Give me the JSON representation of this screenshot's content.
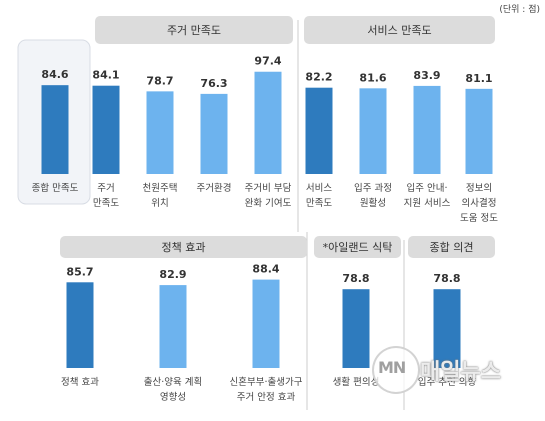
{
  "unit_note": "(단위 : 점)",
  "colors": {
    "dark_bar": "#2E7BBE",
    "light_bar": "#6DB3EE",
    "header_bg": "#DCDCDC",
    "panel_bg": "#F2F4F8"
  },
  "watermark": {
    "logo": "MN",
    "text": "매일뉴스"
  },
  "chart_data": {
    "type": "bar",
    "groups": [
      {
        "header": "",
        "bars": [
          {
            "label": [
              "종합 만족도"
            ],
            "value": 84.6,
            "value_label": "84.6",
            "emphasis": "dark"
          }
        ]
      },
      {
        "header": "주거 만족도",
        "bars": [
          {
            "label": [
              "주거",
              "만족도"
            ],
            "value": 84.1,
            "value_label": "84.1",
            "emphasis": "dark"
          },
          {
            "label": [
              "천원주택",
              "위치"
            ],
            "value": 78.7,
            "value_label": "78.7",
            "emphasis": "light"
          },
          {
            "label": [
              "주거환경"
            ],
            "value": 76.3,
            "value_label": "76.3",
            "emphasis": "light"
          },
          {
            "label": [
              "주거비 부담",
              "완화 기여도"
            ],
            "value": 97.4,
            "value_label": "97.4",
            "emphasis": "light"
          }
        ]
      },
      {
        "header": "서비스 만족도",
        "bars": [
          {
            "label": [
              "서비스",
              "만족도"
            ],
            "value": 82.2,
            "value_label": "82.2",
            "emphasis": "dark"
          },
          {
            "label": [
              "입주 과정",
              "원활성"
            ],
            "value": 81.6,
            "value_label": "81.6",
            "emphasis": "light"
          },
          {
            "label": [
              "입주 안내·",
              "지원 서비스"
            ],
            "value": 83.9,
            "value_label": "83.9",
            "emphasis": "light"
          },
          {
            "label": [
              "정보의",
              "의사결정",
              "도움 정도"
            ],
            "value": 81.1,
            "value_label": "81.1",
            "emphasis": "light"
          }
        ]
      },
      {
        "header": "정책 효과",
        "bars": [
          {
            "label": [
              "정책 효과"
            ],
            "value": 85.7,
            "value_label": "85.7",
            "emphasis": "dark"
          },
          {
            "label": [
              "출산·양육 계획",
              "영향성"
            ],
            "value": 82.9,
            "value_label": "82.9",
            "emphasis": "light"
          },
          {
            "label": [
              "신혼부부·출생가구",
              "주거 안정 효과"
            ],
            "value": 88.4,
            "value_label": "88.4",
            "emphasis": "light"
          }
        ]
      },
      {
        "header": "*아일랜드 식탁",
        "bars": [
          {
            "label": [
              "생활 편의성"
            ],
            "value": 78.8,
            "value_label": "78.8",
            "emphasis": "dark"
          }
        ]
      },
      {
        "header": "종합 의견",
        "bars": [
          {
            "label": [
              "입주 추천 의향"
            ],
            "value": 78.8,
            "value_label": "78.8",
            "emphasis": "dark"
          }
        ]
      }
    ]
  }
}
